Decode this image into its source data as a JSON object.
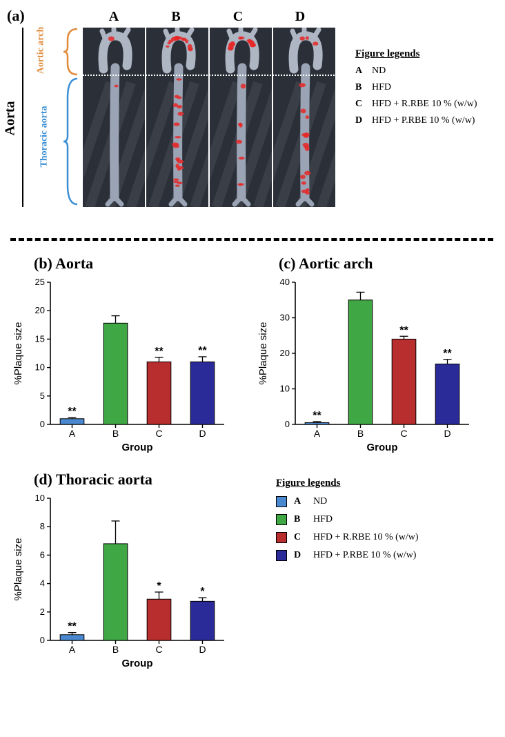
{
  "panel_a": {
    "label": "(a)",
    "side_label": "Aorta",
    "arch_label": "Aortic arch",
    "arch_color": "#e08a3a",
    "thoracic_label": "Thoracic aorta",
    "thoracic_color": "#3a8fd4",
    "columns": [
      "A",
      "B",
      "C",
      "D"
    ],
    "legend_header": "Figure legends",
    "legend": [
      {
        "key": "A",
        "text": "ND"
      },
      {
        "key": "B",
        "text": "HFD"
      },
      {
        "key": "C",
        "text": "HFD + R.RBE 10 % (w/w)"
      },
      {
        "key": "D",
        "text": "HFD + P.RBE 10 % (w/w)"
      }
    ]
  },
  "colors": {
    "A": "#4a88d0",
    "B": "#3fa845",
    "C": "#b82d2d",
    "D": "#2a2a98"
  },
  "chart_b": {
    "label": "(b) Aorta",
    "ylabel": "%Plaque size",
    "xlabel": "Group",
    "ymax": 25,
    "ytick": 5,
    "bars": [
      {
        "g": "A",
        "v": 1.0,
        "e": 0.2,
        "sig": "**"
      },
      {
        "g": "B",
        "v": 17.8,
        "e": 1.3,
        "sig": ""
      },
      {
        "g": "C",
        "v": 11.0,
        "e": 0.8,
        "sig": "**"
      },
      {
        "g": "D",
        "v": 11.0,
        "e": 0.9,
        "sig": "**"
      }
    ]
  },
  "chart_c": {
    "label": "(c) Aortic arch",
    "ylabel": "%Plaque size",
    "xlabel": "Group",
    "ymax": 40,
    "ytick": 10,
    "bars": [
      {
        "g": "A",
        "v": 0.5,
        "e": 0.3,
        "sig": "**"
      },
      {
        "g": "B",
        "v": 35.0,
        "e": 2.2,
        "sig": ""
      },
      {
        "g": "C",
        "v": 24.0,
        "e": 0.8,
        "sig": "**"
      },
      {
        "g": "D",
        "v": 17.0,
        "e": 1.3,
        "sig": "**"
      }
    ]
  },
  "chart_d": {
    "label": "(d) Thoracic aorta",
    "ylabel": "%Plaque size",
    "xlabel": "Group",
    "ymax": 10,
    "ytick": 2,
    "bars": [
      {
        "g": "A",
        "v": 0.4,
        "e": 0.15,
        "sig": "**"
      },
      {
        "g": "B",
        "v": 6.8,
        "e": 1.6,
        "sig": ""
      },
      {
        "g": "C",
        "v": 2.9,
        "e": 0.5,
        "sig": "*"
      },
      {
        "g": "D",
        "v": 2.75,
        "e": 0.25,
        "sig": "*"
      }
    ]
  },
  "legend2": {
    "header": "Figure legends",
    "items": [
      {
        "key": "A",
        "text": "ND"
      },
      {
        "key": "B",
        "text": "HFD"
      },
      {
        "key": "C",
        "text": "HFD + R.RBE 10 % (w/w)"
      },
      {
        "key": "D",
        "text": "HFD + P.RBE 10 % (w/w)"
      }
    ]
  }
}
